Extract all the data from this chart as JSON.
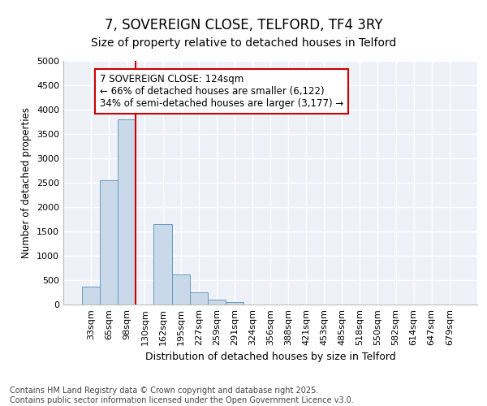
{
  "title_line1": "7, SOVEREIGN CLOSE, TELFORD, TF4 3RY",
  "title_line2": "Size of property relative to detached houses in Telford",
  "xlabel": "Distribution of detached houses by size in Telford",
  "ylabel": "Number of detached properties",
  "categories": [
    "33sqm",
    "65sqm",
    "98sqm",
    "130sqm",
    "162sqm",
    "195sqm",
    "227sqm",
    "259sqm",
    "291sqm",
    "324sqm",
    "356sqm",
    "388sqm",
    "421sqm",
    "453sqm",
    "485sqm",
    "518sqm",
    "550sqm",
    "582sqm",
    "614sqm",
    "647sqm",
    "679sqm"
  ],
  "values": [
    375,
    2550,
    3800,
    0,
    1650,
    625,
    250,
    100,
    50,
    0,
    0,
    0,
    0,
    0,
    0,
    0,
    0,
    0,
    0,
    0,
    0
  ],
  "bar_color": "#c9d9ea",
  "bar_edgecolor": "#6699bb",
  "ylim": [
    0,
    5000
  ],
  "yticks": [
    0,
    500,
    1000,
    1500,
    2000,
    2500,
    3000,
    3500,
    4000,
    4500,
    5000
  ],
  "vline_color": "#cc0000",
  "annotation_text": "7 SOVEREIGN CLOSE: 124sqm\n← 66% of detached houses are smaller (6,122)\n34% of semi-detached houses are larger (3,177) →",
  "annotation_box_edgecolor": "#cc0000",
  "footer_line1": "Contains HM Land Registry data © Crown copyright and database right 2025.",
  "footer_line2": "Contains public sector information licensed under the Open Government Licence v3.0.",
  "bg_color": "#ffffff",
  "plot_bg_color": "#eef2f8",
  "grid_color": "#ffffff",
  "title_fontsize": 12,
  "subtitle_fontsize": 10,
  "xlabel_fontsize": 9,
  "ylabel_fontsize": 8.5,
  "tick_fontsize": 8,
  "footer_fontsize": 7,
  "annotation_fontsize": 8.5
}
